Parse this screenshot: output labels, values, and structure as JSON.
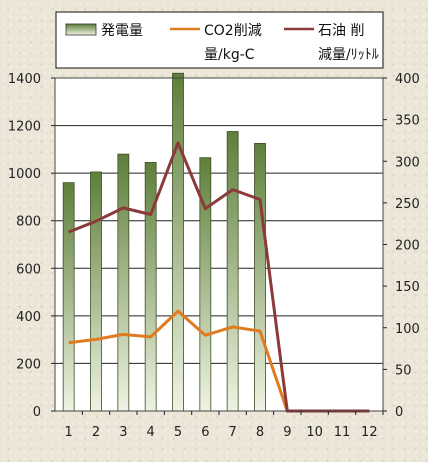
{
  "chart_data": {
    "type": "bar",
    "categories": [
      "1",
      "2",
      "3",
      "4",
      "5",
      "6",
      "7",
      "8",
      "9",
      "10",
      "11",
      "12"
    ],
    "series": [
      {
        "name": "発電量",
        "type": "bar",
        "axis": "left",
        "values": [
          960,
          1005,
          1080,
          1045,
          1420,
          1065,
          1175,
          1125,
          null,
          null,
          null,
          null
        ]
      },
      {
        "name": "CO2削減量/kg-C",
        "type": "line",
        "axis": "right",
        "values": [
          82,
          86,
          92,
          89,
          120,
          91,
          101,
          96,
          0,
          0,
          0,
          0
        ]
      },
      {
        "name": "石油 削減量/ﾘｯﾄﾙ",
        "type": "line",
        "axis": "right",
        "values": [
          215,
          228,
          244,
          236,
          322,
          243,
          266,
          254,
          0,
          0,
          0,
          0
        ]
      }
    ],
    "legend": [
      {
        "line1": "発電量",
        "line2": ""
      },
      {
        "line1": "CO2削減",
        "line2": "量/kg-C"
      },
      {
        "line1": "石油 削",
        "line2": "減量/ﾘｯﾄﾙ"
      }
    ],
    "y_left": {
      "min": 0,
      "max": 1400,
      "ticks": [
        "0",
        "200",
        "400",
        "600",
        "800",
        "1000",
        "1200",
        "1400"
      ]
    },
    "y_right": {
      "min": 0,
      "max": 400,
      "ticks": [
        "0",
        "50",
        "100",
        "150",
        "200",
        "250",
        "300",
        "350",
        "400"
      ]
    },
    "grid": true,
    "legend_position": "top",
    "colors": {
      "bar_top": "#5e7f3a",
      "bar_bottom": "#eef3e2",
      "co2": "#e07b20",
      "oil": "#8b3a3a",
      "plot_bg": "#ffffff"
    }
  }
}
